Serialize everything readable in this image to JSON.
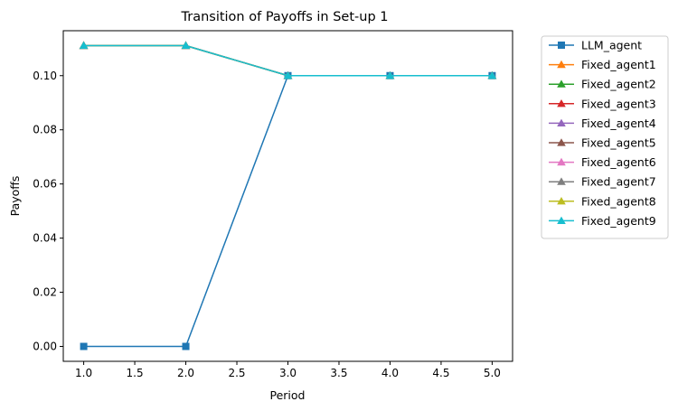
{
  "chart_data": {
    "type": "line",
    "title": "Transition of Payoffs in Set-up 1",
    "xlabel": "Period",
    "ylabel": "Payoffs",
    "xlim": [
      0.8,
      5.2
    ],
    "ylim": [
      -0.0055,
      0.1166
    ],
    "xticks": [
      1.0,
      1.5,
      2.0,
      2.5,
      3.0,
      3.5,
      4.0,
      4.5,
      5.0
    ],
    "xtick_labels": [
      "1.0",
      "1.5",
      "2.0",
      "2.5",
      "3.0",
      "3.5",
      "4.0",
      "4.5",
      "5.0"
    ],
    "yticks": [
      0.0,
      0.02,
      0.04,
      0.06,
      0.08,
      0.1
    ],
    "ytick_labels": [
      "0.00",
      "0.02",
      "0.04",
      "0.06",
      "0.08",
      "0.10"
    ],
    "grid": false,
    "legend_position": "outside-right",
    "x": [
      1,
      2,
      3,
      4,
      5
    ],
    "series": [
      {
        "name": "LLM_agent",
        "marker": "square",
        "color": "#1f77b4",
        "values": [
          0.0,
          0.0,
          0.1,
          0.1,
          0.1
        ]
      },
      {
        "name": "Fixed_agent1",
        "marker": "triangle",
        "color": "#ff7f0e",
        "values": [
          0.1111,
          0.1111,
          0.1,
          0.1,
          0.1
        ]
      },
      {
        "name": "Fixed_agent2",
        "marker": "triangle",
        "color": "#2ca02c",
        "values": [
          0.1111,
          0.1111,
          0.1,
          0.1,
          0.1
        ]
      },
      {
        "name": "Fixed_agent3",
        "marker": "triangle",
        "color": "#d62728",
        "values": [
          0.1111,
          0.1111,
          0.1,
          0.1,
          0.1
        ]
      },
      {
        "name": "Fixed_agent4",
        "marker": "triangle",
        "color": "#9467bd",
        "values": [
          0.1111,
          0.1111,
          0.1,
          0.1,
          0.1
        ]
      },
      {
        "name": "Fixed_agent5",
        "marker": "triangle",
        "color": "#8c564b",
        "values": [
          0.1111,
          0.1111,
          0.1,
          0.1,
          0.1
        ]
      },
      {
        "name": "Fixed_agent6",
        "marker": "triangle",
        "color": "#e377c2",
        "values": [
          0.1111,
          0.1111,
          0.1,
          0.1,
          0.1
        ]
      },
      {
        "name": "Fixed_agent7",
        "marker": "triangle",
        "color": "#7f7f7f",
        "values": [
          0.1111,
          0.1111,
          0.1,
          0.1,
          0.1
        ]
      },
      {
        "name": "Fixed_agent8",
        "marker": "triangle",
        "color": "#bcbd22",
        "values": [
          0.1111,
          0.1111,
          0.1,
          0.1,
          0.1
        ]
      },
      {
        "name": "Fixed_agent9",
        "marker": "triangle",
        "color": "#17becf",
        "values": [
          0.1111,
          0.1111,
          0.1,
          0.1,
          0.1
        ]
      }
    ]
  }
}
